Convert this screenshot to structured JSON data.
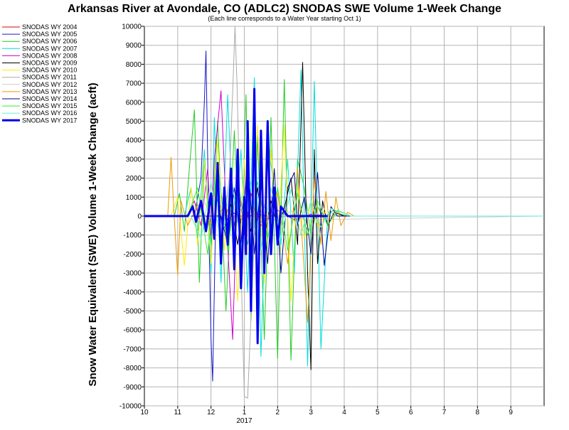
{
  "chart_data": {
    "type": "line",
    "title": "Arkansas River at Avondale, CO (ADLC2) SNODAS SWE Volume 1-Week Change",
    "subtitle": "(Each line corresponds to a Water Year starting Oct 1)",
    "ylabel": "Snow Water Equivalent (SWE) Volume 1-Week Change (acft)",
    "xlabel": "",
    "x_unit": "month",
    "x_tick_labels": [
      "10",
      "11",
      "12",
      "1",
      "2",
      "3",
      "4",
      "5",
      "6",
      "7",
      "8",
      "9"
    ],
    "x_year_label": "2017",
    "xlim": [
      10.0,
      22.0
    ],
    "ylim": [
      -10000,
      10000
    ],
    "y_ticks": [
      -10000,
      -9000,
      -8000,
      -7000,
      -6000,
      -5000,
      -4000,
      -3000,
      -2000,
      -1000,
      0,
      1000,
      2000,
      3000,
      4000,
      5000,
      6000,
      7000,
      8000,
      9000,
      10000
    ],
    "grid": true,
    "legend_position": "left",
    "series": [
      {
        "name": "SNODAS WY 2004",
        "color": "#e00000",
        "width": 1,
        "x": [
          10.0,
          22.0
        ],
        "values": [
          0,
          0
        ]
      },
      {
        "name": "SNODAS WY 2005",
        "color": "#1a1acc",
        "width": 1,
        "x": [
          10.0,
          11.5,
          11.7,
          11.8,
          11.85,
          11.9,
          11.95,
          12.0,
          12.05,
          12.1,
          12.15,
          12.25,
          12.35,
          12.6,
          12.9,
          13.3,
          13.7,
          14.0,
          22.0
        ],
        "values": [
          0,
          0,
          2000,
          6000,
          8700,
          3000,
          -2000,
          -6500,
          -8700,
          -4000,
          1000,
          500,
          -800,
          300,
          -200,
          100,
          0,
          0,
          0
        ]
      },
      {
        "name": "SNODAS WY 2006",
        "color": "#22cc22",
        "width": 1,
        "x": [
          10.0,
          10.9,
          11.05,
          11.2,
          11.35,
          11.5,
          11.65,
          11.8,
          12.0,
          12.2,
          12.45,
          12.7,
          12.9,
          13.05,
          13.2,
          13.4,
          13.6,
          13.8,
          14.0,
          14.2,
          14.4,
          14.6,
          14.8,
          15.0,
          15.2,
          15.4,
          15.55,
          15.7,
          15.9,
          16.1,
          16.3,
          16.5,
          17.0,
          22.0
        ],
        "values": [
          0,
          0,
          1200,
          -800,
          2500,
          5600,
          -3500,
          3000,
          -1500,
          5000,
          -5000,
          4500,
          -3000,
          6400,
          -5500,
          4200,
          -6500,
          5200,
          -7500,
          7200,
          -7600,
          3000,
          1500,
          -1000,
          500,
          -200,
          200,
          300,
          100,
          0,
          0,
          0,
          0,
          0
        ]
      },
      {
        "name": "SNODAS WY 2007",
        "color": "#00dddd",
        "width": 1,
        "x": [
          10.0,
          11.2,
          11.4,
          11.6,
          11.8,
          12.0,
          12.1,
          12.3,
          12.5,
          12.7,
          12.9,
          13.1,
          13.3,
          13.5,
          13.7,
          13.9,
          14.1,
          14.3,
          14.5,
          14.7,
          14.9,
          15.1,
          15.3,
          15.5,
          15.6,
          15.8,
          16.0,
          16.2,
          22.0
        ],
        "values": [
          0,
          0,
          1500,
          -1200,
          3500,
          -3000,
          5200,
          -3500,
          6400,
          -2000,
          3500,
          -4000,
          7300,
          -7400,
          4000,
          1500,
          -1500,
          3000,
          -3000,
          7700,
          -7900,
          7100,
          -7000,
          0,
          200,
          0,
          0,
          0,
          0
        ]
      },
      {
        "name": "SNODAS WY 2008",
        "color": "#cc00cc",
        "width": 1,
        "x": [
          10.0,
          11.3,
          11.5,
          11.7,
          11.9,
          12.0,
          12.1,
          12.3,
          12.5,
          12.65,
          12.8,
          13.0,
          13.2,
          13.5,
          14.0,
          14.5,
          15.0,
          15.5,
          22.0
        ],
        "values": [
          0,
          0,
          800,
          -500,
          2500,
          -1000,
          3000,
          6600,
          -1500,
          -6500,
          2000,
          -1000,
          1200,
          -500,
          300,
          -200,
          100,
          0,
          0
        ]
      },
      {
        "name": "SNODAS WY 2009",
        "color": "#000000",
        "width": 1,
        "x": [
          10.0,
          12.4,
          12.6,
          12.8,
          13.0,
          13.2,
          13.4,
          13.6,
          13.8,
          14.0,
          14.2,
          14.4,
          14.6,
          14.75,
          14.9,
          15.0,
          15.1,
          15.2,
          15.35,
          15.5,
          15.7,
          16.0,
          22.0
        ],
        "values": [
          0,
          0,
          600,
          -1500,
          1000,
          -800,
          1500,
          -1200,
          800,
          -600,
          400,
          2000,
          -1500,
          8100,
          -3000,
          -8100,
          3500,
          -2500,
          800,
          -500,
          200,
          0,
          0
        ]
      },
      {
        "name": "SNODAS WY 2010",
        "color": "#ffee00",
        "width": 1,
        "x": [
          10.0,
          10.8,
          11.0,
          11.2,
          11.4,
          11.6,
          11.8,
          12.0,
          12.2,
          12.4,
          12.6,
          12.8,
          13.0,
          13.2,
          13.4,
          13.6,
          13.8,
          14.0,
          14.2,
          14.4,
          14.6,
          14.8,
          15.0,
          15.2,
          15.4,
          15.6,
          15.8,
          22.0
        ],
        "values": [
          0,
          0,
          1000,
          -2600,
          1500,
          -1500,
          3000,
          -2500,
          4000,
          -1800,
          2500,
          -4500,
          3000,
          -3500,
          4800,
          -3500,
          3500,
          -1500,
          4800,
          -4500,
          1600,
          -1200,
          800,
          -500,
          200,
          0,
          0,
          0
        ]
      },
      {
        "name": "SNODAS WY 2011",
        "color": "#aaaaaa",
        "width": 1,
        "x": [
          10.0,
          12.4,
          12.55,
          12.65,
          12.72,
          12.78,
          12.85,
          12.92,
          13.0,
          13.1,
          13.3,
          13.6,
          14.0,
          22.0
        ],
        "values": [
          0,
          0,
          2000,
          6500,
          10000,
          7000,
          2000,
          -4000,
          -9500,
          -9600,
          -1000,
          500,
          0,
          0
        ]
      },
      {
        "name": "SNODAS WY 2012",
        "color": "#cccccc",
        "width": 1,
        "x": [
          10.0,
          11.5,
          11.8,
          12.1,
          12.4,
          12.7,
          13.0,
          13.3,
          13.6,
          14.0,
          14.4,
          14.8,
          22.0
        ],
        "values": [
          0,
          0,
          800,
          -600,
          1200,
          -800,
          1000,
          -700,
          600,
          -400,
          300,
          -200,
          0
        ]
      },
      {
        "name": "SNODAS WY 2013",
        "color": "#ee9900",
        "width": 1,
        "x": [
          10.0,
          10.7,
          10.8,
          10.9,
          11.0,
          11.1,
          11.3,
          11.6,
          12.0,
          12.4,
          12.8,
          13.2,
          13.6,
          14.0,
          14.3,
          14.6,
          14.9,
          15.1,
          15.3,
          15.45,
          15.6,
          15.75,
          15.9,
          16.1,
          16.3,
          22.0
        ],
        "values": [
          0,
          0,
          3100,
          -200,
          -3100,
          800,
          -500,
          600,
          -400,
          500,
          -300,
          400,
          -500,
          1200,
          -2500,
          2500,
          -5600,
          2000,
          -1500,
          1300,
          -1300,
          1000,
          -500,
          200,
          0,
          0
        ]
      },
      {
        "name": "SNODAS WY 2014",
        "color": "#00008b",
        "width": 1,
        "x": [
          10.0,
          12.3,
          12.5,
          12.7,
          12.9,
          13.1,
          13.3,
          13.5,
          13.7,
          13.9,
          14.1,
          14.3,
          14.5,
          14.6,
          14.8,
          15.0,
          15.2,
          15.4,
          15.6,
          15.8,
          16.0,
          22.0
        ],
        "values": [
          0,
          0,
          -1500,
          1500,
          -1500,
          3000,
          -2000,
          1800,
          -2500,
          2500,
          -3000,
          1500,
          2300,
          -500,
          1000,
          -2000,
          2300,
          -2600,
          500,
          0,
          0,
          0
        ]
      },
      {
        "name": "SNODAS WY 2015",
        "color": "#33ee33",
        "width": 1,
        "x": [
          10.0,
          11.3,
          11.6,
          11.9,
          12.2,
          12.5,
          12.8,
          13.1,
          13.4,
          13.7,
          14.0,
          14.3,
          14.6,
          14.9,
          15.2,
          15.5,
          15.8,
          16.2,
          22.0
        ],
        "values": [
          0,
          0,
          1500,
          -2000,
          2800,
          -1800,
          2000,
          -1500,
          1800,
          -1200,
          1500,
          -1800,
          1200,
          -1000,
          800,
          -500,
          300,
          0,
          0
        ]
      },
      {
        "name": "SNODAS WY 2016",
        "color": "#66eedd",
        "width": 1,
        "x": [
          10.0,
          11.4,
          11.7,
          12.0,
          12.3,
          12.6,
          12.9,
          13.2,
          13.5,
          13.8,
          14.1,
          14.4,
          14.7,
          15.0,
          15.3,
          15.6,
          15.9,
          16.2,
          22.0
        ],
        "values": [
          0,
          0,
          -1200,
          1800,
          -1500,
          2200,
          -1600,
          2000,
          -1800,
          1500,
          -1200,
          1400,
          -1000,
          800,
          -600,
          400,
          200,
          0,
          0
        ]
      },
      {
        "name": "SNODAS WY 2017",
        "color": "#0000ee",
        "width": 3,
        "x": [
          10.0,
          11.3,
          11.45,
          11.55,
          11.7,
          11.85,
          12.0,
          12.1,
          12.2,
          12.3,
          12.4,
          12.5,
          12.6,
          12.7,
          12.8,
          12.9,
          13.0,
          13.05,
          13.1,
          13.2,
          13.3,
          13.4,
          13.5,
          13.6,
          13.7,
          13.8,
          13.9,
          14.0,
          14.1,
          14.3,
          14.6,
          14.9,
          15.2,
          15.5
        ],
        "values": [
          0,
          0,
          500,
          -300,
          800,
          -800,
          1200,
          -1200,
          2800,
          -2500,
          1500,
          -1500,
          2500,
          -2800,
          3500,
          -3800,
          1000,
          -2000,
          5000,
          -5000,
          6700,
          -6700,
          4500,
          -3000,
          5000,
          -2000,
          1500,
          -1500,
          500,
          0,
          0,
          0,
          0,
          0
        ]
      }
    ]
  }
}
